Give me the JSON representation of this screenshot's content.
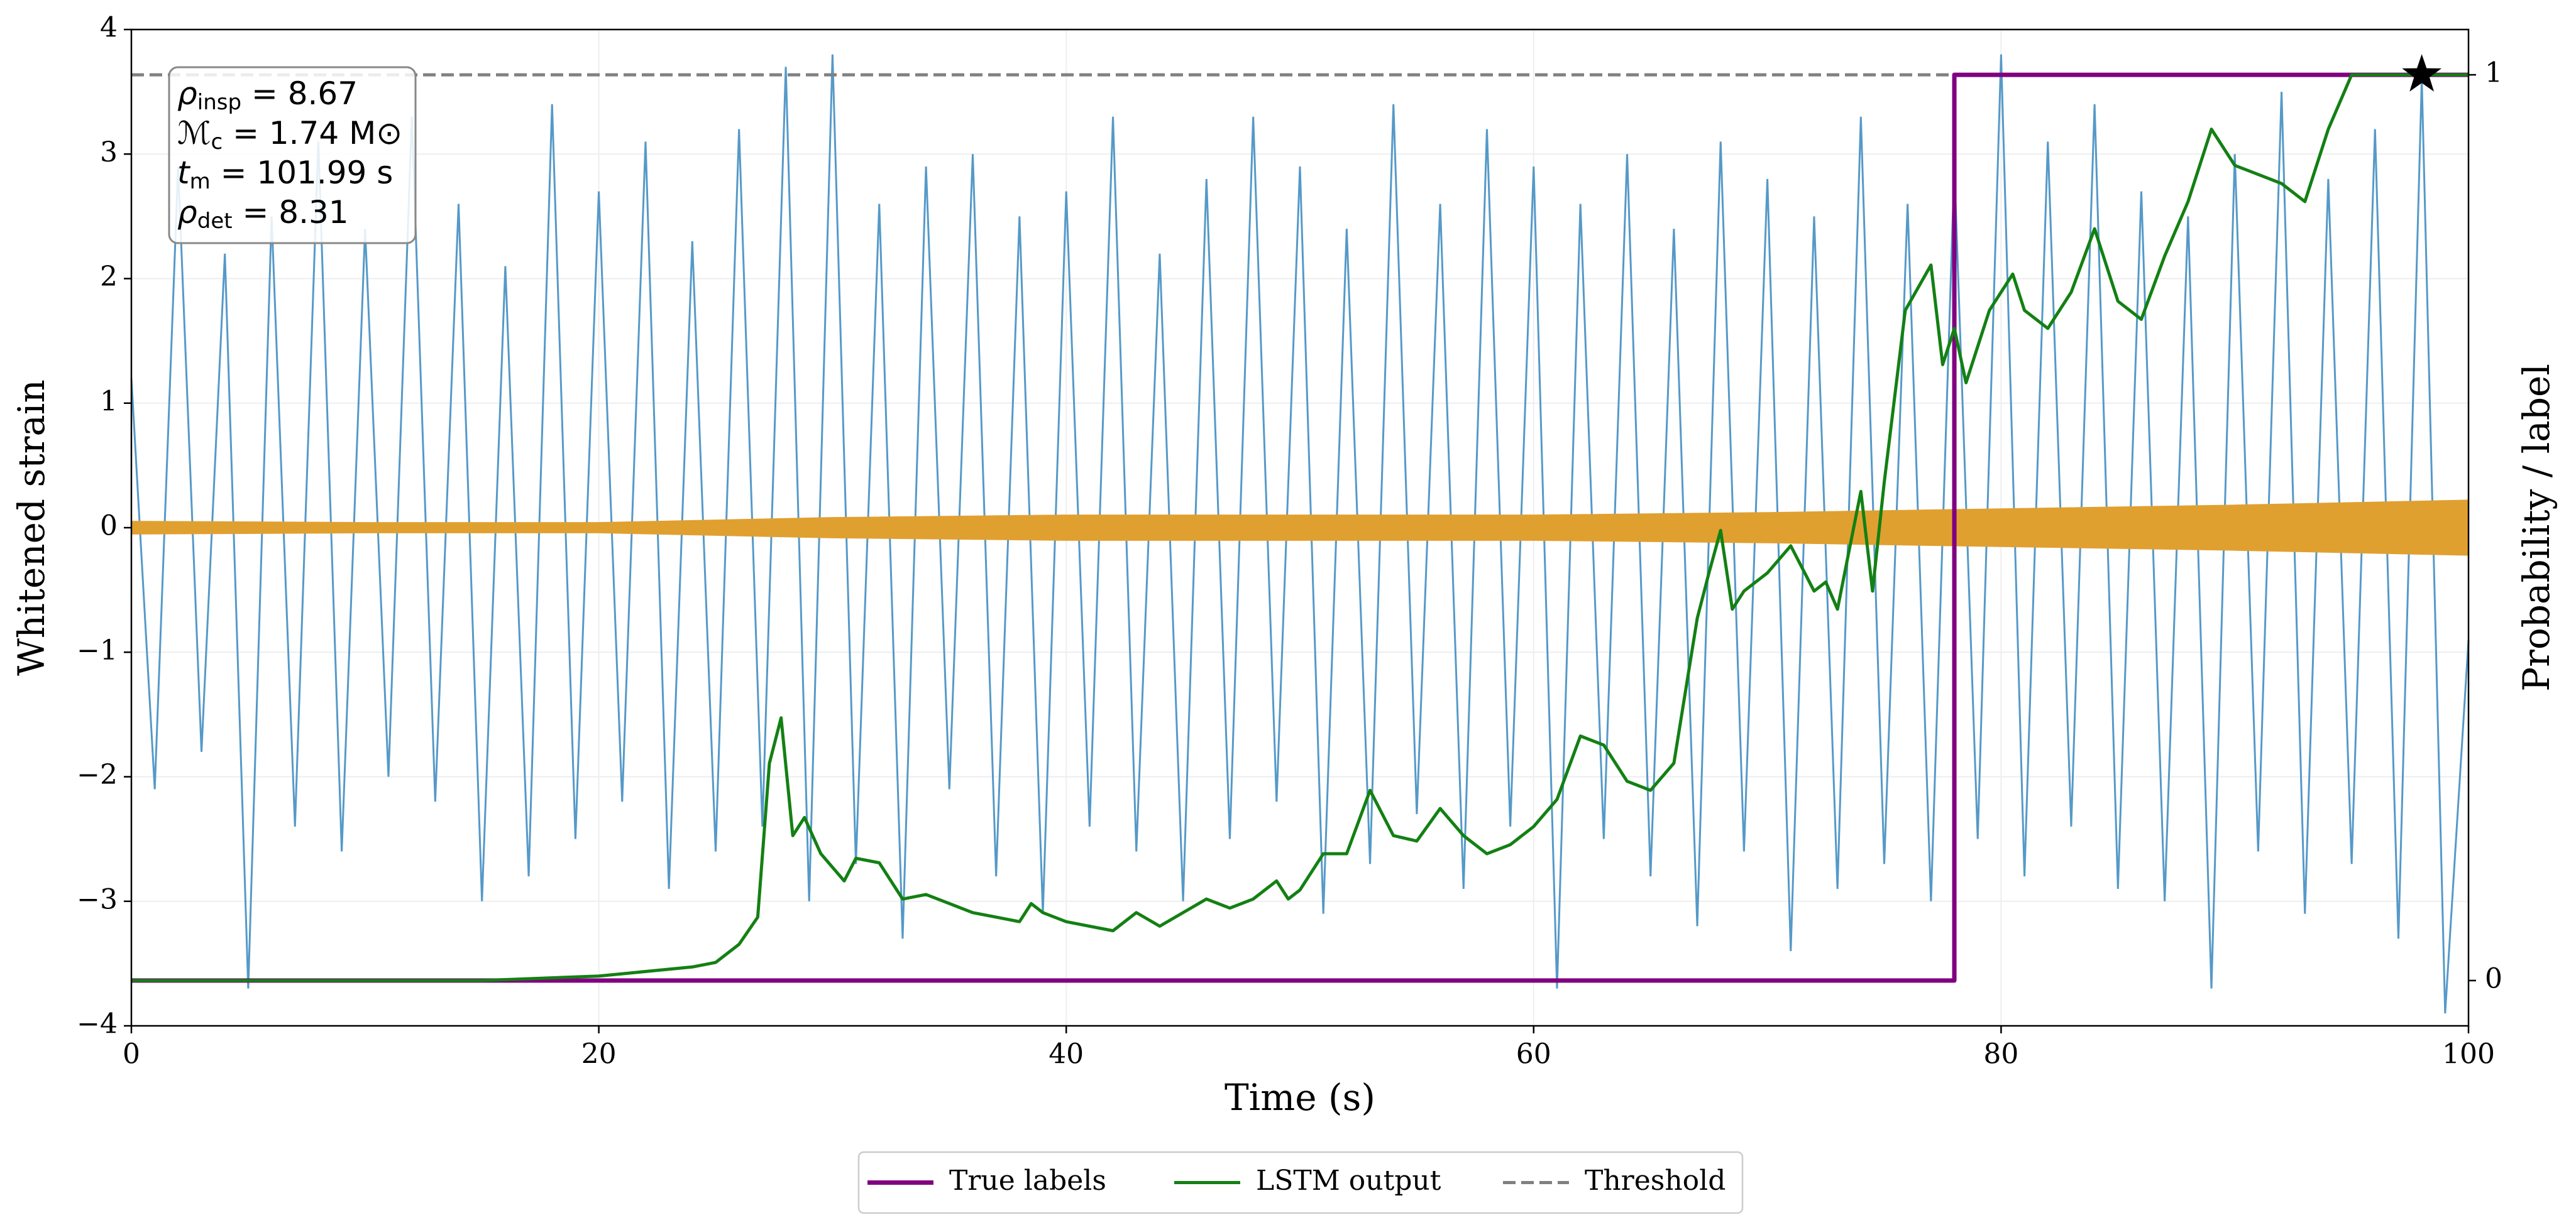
{
  "chart_data": {
    "type": "line",
    "xlabel": "Time (s)",
    "ylabel": "Whitened strain",
    "y2label": "Probability / label",
    "xlim": [
      0,
      100
    ],
    "xticks": [
      0,
      20,
      40,
      60,
      80,
      100
    ],
    "ylim": [
      -4,
      4
    ],
    "yticks": [
      {
        "value": -4,
        "label": "−4"
      },
      {
        "value": -3,
        "label": "−3"
      },
      {
        "value": -2,
        "label": "−2"
      },
      {
        "value": -1,
        "label": "−1"
      },
      0,
      1,
      2,
      3,
      4
    ],
    "y2lim": [
      -0.05,
      1.05
    ],
    "y2ticks": [
      0,
      1
    ],
    "grid": true,
    "legend": "bottom",
    "annotation": [
      {
        "symbol": "ρ",
        "sub": "insp",
        "rest": " = 8.67"
      },
      {
        "symbol": "ℳ",
        "sub": "c",
        "rest": " = 1.74 M⊙"
      },
      {
        "symbol": "t",
        "sub": "m",
        "rest": " = 101.99 s"
      },
      {
        "symbol": "ρ",
        "sub": "det",
        "rest": " = 8.31"
      }
    ],
    "strain": {
      "color": "#5599c8",
      "x": [
        0,
        1,
        2,
        3,
        4,
        5,
        6,
        7,
        8,
        9,
        10,
        11,
        12,
        13,
        14,
        15,
        16,
        17,
        18,
        19,
        20,
        21,
        22,
        23,
        24,
        25,
        26,
        27,
        28,
        29,
        30,
        31,
        32,
        33,
        34,
        35,
        36,
        37,
        38,
        39,
        40,
        41,
        42,
        43,
        44,
        45,
        46,
        47,
        48,
        49,
        50,
        51,
        52,
        53,
        54,
        55,
        56,
        57,
        58,
        59,
        60,
        61,
        62,
        63,
        64,
        65,
        66,
        67,
        68,
        69,
        70,
        71,
        72,
        73,
        74,
        75,
        76,
        77,
        78,
        79,
        80,
        81,
        82,
        83,
        84,
        85,
        86,
        87,
        88,
        89,
        90,
        91,
        92,
        93,
        94,
        95,
        96,
        97,
        98,
        99,
        100
      ],
      "values": [
        1.2,
        -2.1,
        2.9,
        -1.8,
        2.2,
        -3.7,
        2.5,
        -2.4,
        3.1,
        -2.6,
        2.4,
        -2.0,
        3.3,
        -2.2,
        2.6,
        -3.0,
        2.1,
        -2.8,
        3.4,
        -2.5,
        2.7,
        -2.2,
        3.1,
        -2.9,
        2.3,
        -2.6,
        3.2,
        -2.4,
        3.7,
        -3.0,
        3.8,
        -2.7,
        2.6,
        -3.3,
        2.9,
        -2.1,
        3.0,
        -2.8,
        2.5,
        -3.1,
        2.7,
        -2.4,
        3.3,
        -2.6,
        2.2,
        -3.0,
        2.8,
        -2.5,
        3.3,
        -2.2,
        2.9,
        -3.1,
        2.4,
        -2.7,
        3.4,
        -2.3,
        2.6,
        -2.9,
        3.2,
        -2.4,
        2.9,
        -3.7,
        2.6,
        -2.5,
        3.0,
        -2.8,
        2.4,
        -3.2,
        3.1,
        -2.6,
        2.8,
        -3.4,
        2.5,
        -2.9,
        3.3,
        -2.7,
        2.6,
        -3.0,
        2.9,
        -2.5,
        3.8,
        -2.8,
        3.1,
        -2.4,
        3.4,
        -2.9,
        2.7,
        -3.0,
        2.5,
        -3.7,
        3.0,
        -2.6,
        3.5,
        -3.1,
        2.8,
        -2.7,
        3.2,
        -3.3,
        3.6,
        -3.9,
        -0.9
      ]
    },
    "signal": {
      "color": "#e0a030",
      "x": [
        0,
        10,
        20,
        30,
        40,
        50,
        60,
        70,
        80,
        90,
        100
      ],
      "values": [
        0.05,
        0.04,
        0.04,
        0.08,
        0.1,
        0.1,
        0.1,
        0.12,
        0.15,
        0.18,
        0.22
      ]
    },
    "series": [
      {
        "name": "True labels",
        "color": "#800080",
        "axis": "y2",
        "x": [
          0,
          78,
          78,
          100
        ],
        "values": [
          0,
          0,
          1,
          1
        ]
      },
      {
        "name": "LSTM output",
        "color": "#138013",
        "axis": "y2",
        "x": [
          0,
          15,
          20,
          22,
          24,
          25,
          26,
          26.8,
          27.3,
          27.8,
          28.3,
          28.8,
          29.5,
          30.5,
          31,
          32,
          33,
          34,
          35,
          36,
          37,
          38,
          38.5,
          39,
          40,
          41,
          42,
          43,
          44,
          45,
          46,
          47,
          48,
          49,
          49.5,
          50,
          51,
          52,
          53,
          54,
          55,
          56,
          57,
          58,
          59,
          60,
          61,
          62,
          63,
          64,
          65,
          66,
          67,
          67.5,
          68,
          68.5,
          69,
          70,
          71,
          72,
          72.5,
          73,
          74,
          74.5,
          75,
          75.9,
          77,
          77.5,
          78,
          78.5,
          79.5,
          80.5,
          81,
          82,
          83,
          84,
          85,
          86,
          87,
          88,
          89,
          90,
          91,
          92,
          93,
          94,
          95,
          96,
          97,
          100
        ],
        "values": [
          0,
          0,
          0.005,
          0.01,
          0.015,
          0.02,
          0.04,
          0.07,
          0.24,
          0.29,
          0.16,
          0.18,
          0.14,
          0.11,
          0.135,
          0.13,
          0.09,
          0.095,
          0.085,
          0.075,
          0.07,
          0.065,
          0.085,
          0.075,
          0.065,
          0.06,
          0.055,
          0.075,
          0.06,
          0.075,
          0.09,
          0.08,
          0.09,
          0.11,
          0.09,
          0.1,
          0.14,
          0.14,
          0.21,
          0.16,
          0.154,
          0.19,
          0.16,
          0.14,
          0.15,
          0.17,
          0.2,
          0.27,
          0.26,
          0.22,
          0.21,
          0.24,
          0.4,
          0.45,
          0.497,
          0.41,
          0.43,
          0.45,
          0.48,
          0.43,
          0.44,
          0.41,
          0.54,
          0.43,
          0.55,
          0.74,
          0.79,
          0.68,
          0.72,
          0.66,
          0.74,
          0.78,
          0.74,
          0.72,
          0.76,
          0.83,
          0.75,
          0.73,
          0.8,
          0.86,
          0.94,
          0.9,
          0.89,
          0.88,
          0.86,
          0.94,
          1.0,
          1.0,
          1.0,
          1.0
        ]
      }
    ],
    "threshold": {
      "name": "Threshold",
      "color": "#808080",
      "value": 1
    },
    "marker": {
      "x": 98,
      "value": 1
    }
  }
}
